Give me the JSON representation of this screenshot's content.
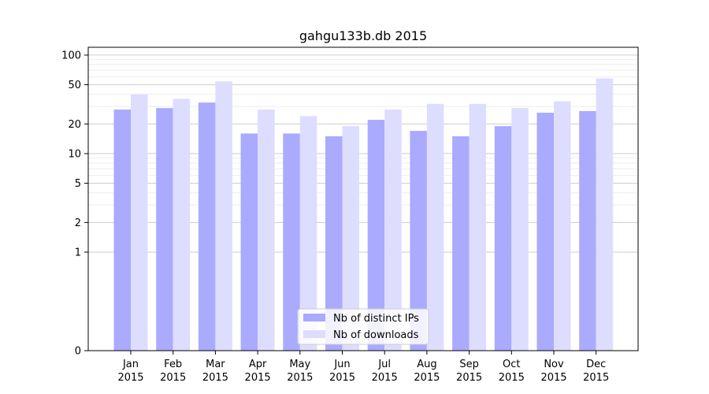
{
  "chart_data": {
    "type": "bar",
    "title": "gahgu133b.db 2015",
    "xlabel": "",
    "ylabel": "",
    "yscale": "symlog",
    "ylim": [
      0,
      120
    ],
    "yticks": [
      0,
      1,
      2,
      5,
      10,
      20,
      50,
      100
    ],
    "grid": true,
    "legend_position": "bottom-center",
    "categories": [
      [
        "Jan",
        "2015"
      ],
      [
        "Feb",
        "2015"
      ],
      [
        "Mar",
        "2015"
      ],
      [
        "Apr",
        "2015"
      ],
      [
        "May",
        "2015"
      ],
      [
        "Jun",
        "2015"
      ],
      [
        "Jul",
        "2015"
      ],
      [
        "Aug",
        "2015"
      ],
      [
        "Sep",
        "2015"
      ],
      [
        "Oct",
        "2015"
      ],
      [
        "Nov",
        "2015"
      ],
      [
        "Dec",
        "2015"
      ]
    ],
    "series": [
      {
        "name": "Nb of distinct IPs",
        "color": "#aaaaff",
        "values": [
          28,
          29,
          33,
          16,
          16,
          15,
          22,
          17,
          15,
          19,
          26,
          27
        ]
      },
      {
        "name": "Nb of downloads",
        "color": "#ddddff",
        "values": [
          40,
          36,
          54,
          28,
          24,
          19,
          28,
          32,
          32,
          29,
          34,
          58
        ]
      }
    ]
  }
}
